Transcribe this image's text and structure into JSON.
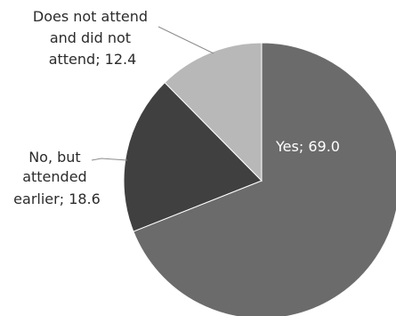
{
  "chart_data": {
    "type": "pie",
    "start": "12 o'clock",
    "direction": "clockwise",
    "slices": [
      {
        "label": "Yes; 69.0",
        "category": "Yes",
        "value": 69.0,
        "color": "#6b6b6b"
      },
      {
        "label": "No, but attended earlier; 18.6",
        "category": "No, but attended earlier",
        "value": 18.6,
        "color": "#404040"
      },
      {
        "label": "Does not attend and did not attend; 12.4",
        "category": "Does not attend and did not attend",
        "value": 12.4,
        "color": "#b8b8b8"
      }
    ],
    "label_lines": {
      "yes": [
        "Yes; 69.0"
      ],
      "no": [
        "No, but",
        "attended",
        "earlier; 18.6"
      ],
      "does_not": [
        "Does not attend",
        "and did not",
        "attend; 12.4"
      ]
    },
    "legend": "none"
  }
}
